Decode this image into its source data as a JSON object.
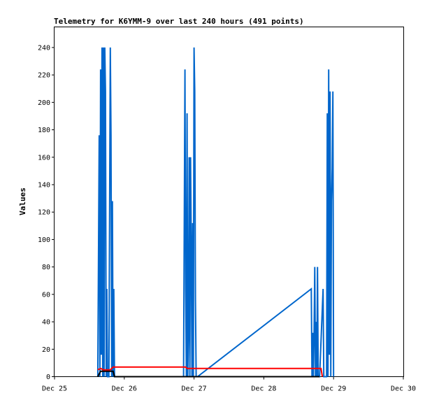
{
  "chart_data": {
    "type": "line",
    "title": "Telemetry for K6YMM-9 over last 240 hours (491 points)",
    "xlabel": "",
    "ylabel": "Values",
    "x_ticks": [
      "Dec 25",
      "Dec 26",
      "Dec 27",
      "Dec 28",
      "Dec 29",
      "Dec 30"
    ],
    "x_range_days": [
      25,
      30
    ],
    "ylim": [
      0,
      255
    ],
    "y_ticks": [
      0,
      20,
      40,
      60,
      80,
      100,
      120,
      140,
      160,
      180,
      200,
      220,
      240
    ],
    "grid": false,
    "legend": "none",
    "series": [
      {
        "color": "#0066cc",
        "points": [
          [
            25.62,
            0
          ],
          [
            25.64,
            176
          ],
          [
            25.65,
            0
          ],
          [
            25.66,
            224
          ],
          [
            25.67,
            16
          ],
          [
            25.68,
            240
          ],
          [
            25.69,
            0
          ],
          [
            25.7,
            240
          ],
          [
            25.71,
            0
          ],
          [
            25.72,
            240
          ],
          [
            25.73,
            208
          ],
          [
            25.74,
            0
          ],
          [
            25.75,
            64
          ],
          [
            25.76,
            0
          ],
          [
            25.78,
            0
          ],
          [
            25.8,
            240
          ],
          [
            25.81,
            176
          ],
          [
            25.82,
            0
          ],
          [
            25.83,
            128
          ],
          [
            25.84,
            0
          ],
          [
            25.85,
            64
          ],
          [
            25.86,
            0
          ],
          [
            26.85,
            0
          ],
          [
            26.87,
            224
          ],
          [
            26.88,
            64
          ],
          [
            26.89,
            0
          ],
          [
            26.9,
            192
          ],
          [
            26.91,
            0
          ],
          [
            26.92,
            32
          ],
          [
            26.93,
            160
          ],
          [
            26.94,
            0
          ],
          [
            26.95,
            160
          ],
          [
            26.96,
            96
          ],
          [
            26.97,
            0
          ],
          [
            26.98,
            112
          ],
          [
            26.99,
            0
          ],
          [
            27.0,
            240
          ],
          [
            27.01,
            208
          ],
          [
            27.02,
            56
          ],
          [
            27.03,
            0
          ],
          [
            27.05,
            0
          ],
          [
            28.68,
            64
          ],
          [
            28.69,
            0
          ],
          [
            28.7,
            32
          ],
          [
            28.71,
            0
          ],
          [
            28.72,
            32
          ],
          [
            28.73,
            80
          ],
          [
            28.74,
            0
          ],
          [
            28.75,
            40
          ],
          [
            28.76,
            0
          ],
          [
            28.77,
            80
          ],
          [
            28.78,
            0
          ],
          [
            28.8,
            0
          ],
          [
            28.85,
            64
          ],
          [
            28.86,
            0
          ],
          [
            28.9,
            0
          ],
          [
            28.91,
            192
          ],
          [
            28.92,
            0
          ],
          [
            28.93,
            224
          ],
          [
            28.94,
            16
          ],
          [
            28.95,
            208
          ],
          [
            28.96,
            0
          ],
          [
            28.97,
            128
          ],
          [
            28.98,
            152
          ],
          [
            28.99,
            208
          ],
          [
            29.0,
            0
          ]
        ]
      },
      {
        "color": "#ff0000",
        "points": [
          [
            25.62,
            5
          ],
          [
            25.66,
            6
          ],
          [
            25.7,
            5
          ],
          [
            25.8,
            5
          ],
          [
            25.84,
            7
          ],
          [
            26.0,
            7
          ],
          [
            26.85,
            7
          ],
          [
            26.88,
            7
          ],
          [
            26.9,
            6
          ],
          [
            27.05,
            6
          ],
          [
            28.7,
            6
          ],
          [
            28.75,
            6
          ],
          [
            28.82,
            6
          ],
          [
            28.84,
            0
          ]
        ]
      },
      {
        "color": "#000000",
        "points": [
          [
            25.62,
            0
          ],
          [
            25.66,
            4
          ],
          [
            25.7,
            4
          ],
          [
            25.84,
            4
          ],
          [
            25.86,
            0
          ],
          [
            26.85,
            0
          ],
          [
            28.8,
            0
          ]
        ]
      }
    ]
  }
}
